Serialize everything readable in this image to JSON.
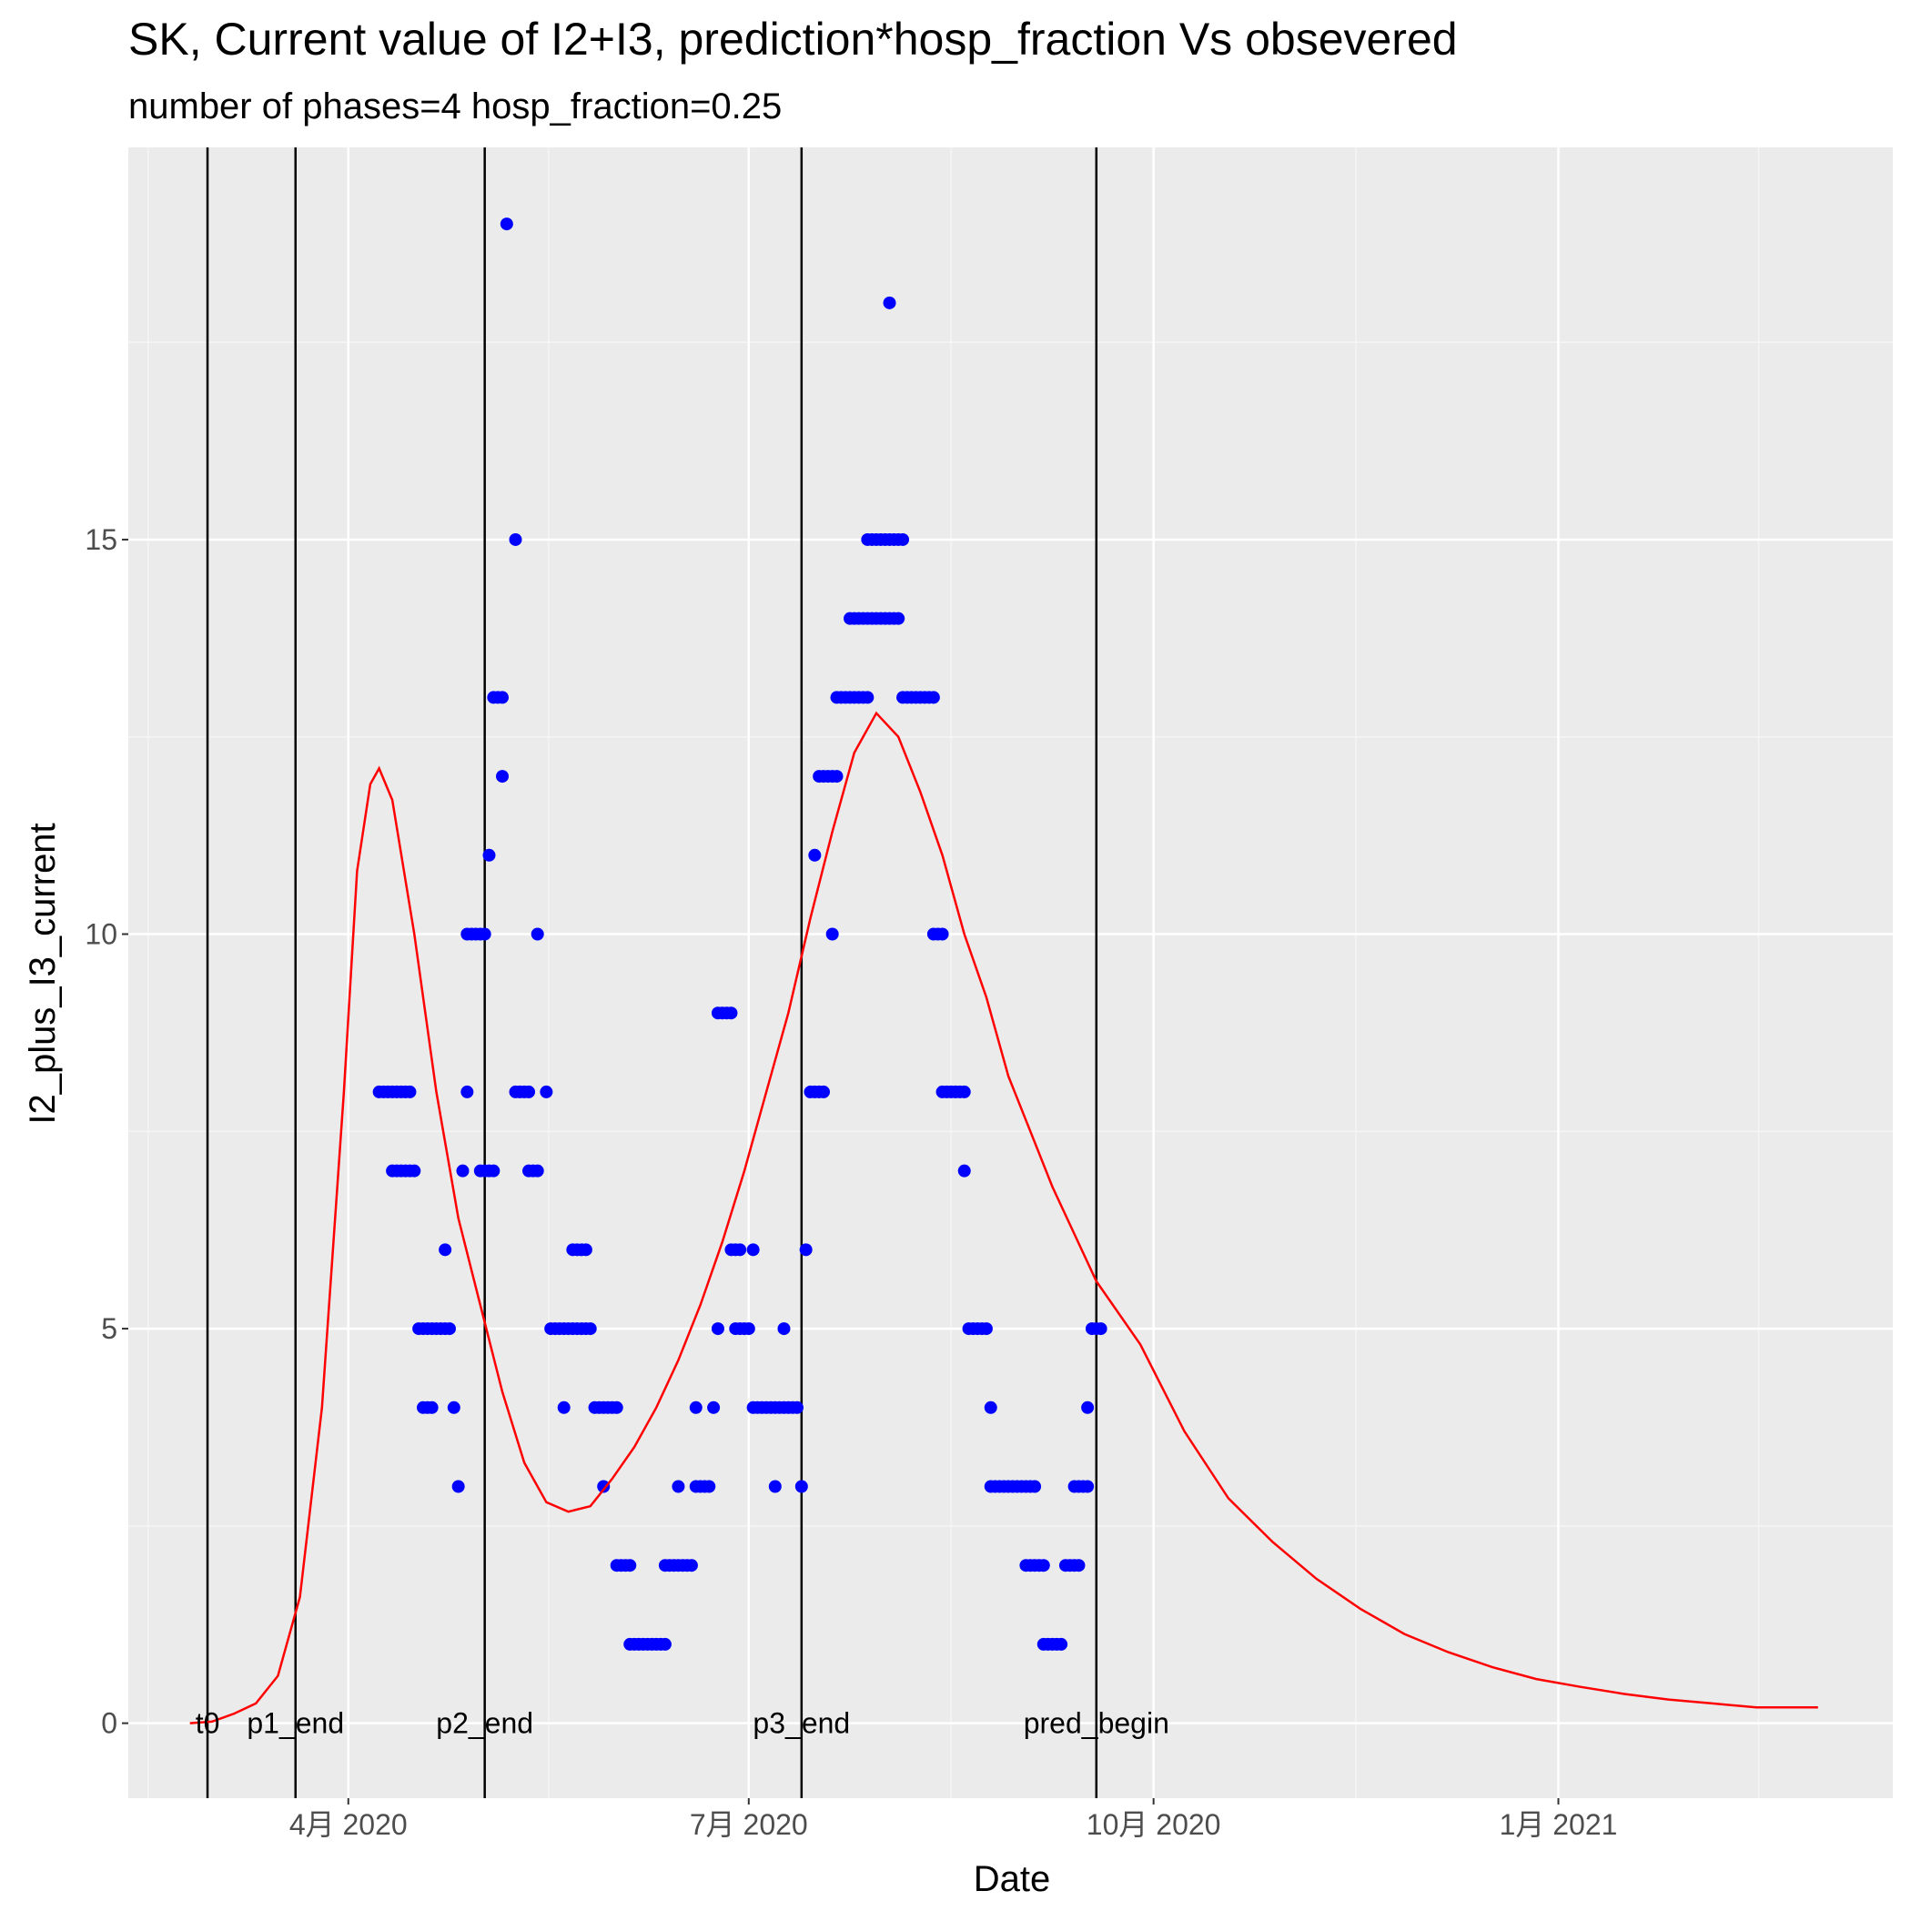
{
  "chart_data": {
    "type": "scatter",
    "title": "SK, Current value of I2+I3, prediction*hosp_fraction Vs obsevered",
    "subtitle": "number of phases=4   hosp_fraction=0.25",
    "x_label": "Date",
    "y_label": "I2_plus_I3_current",
    "xlim": [
      "2020-02-11",
      "2021-03-18"
    ],
    "ylim": [
      -0.95,
      19.97
    ],
    "xticks": [
      {
        "value": "2020-04-01",
        "label": "4月 2020"
      },
      {
        "value": "2020-07-01",
        "label": "7月 2020"
      },
      {
        "value": "2020-10-01",
        "label": "10月 2020"
      },
      {
        "value": "2021-01-01",
        "label": "1月 2021"
      }
    ],
    "yticks": [
      0,
      5,
      10,
      15
    ],
    "grid": true,
    "vlines": [
      {
        "x": "2020-02-29",
        "label": "t0"
      },
      {
        "x": "2020-03-20",
        "label": "p1_end"
      },
      {
        "x": "2020-05-02",
        "label": "p2_end"
      },
      {
        "x": "2020-07-13",
        "label": "p3_end"
      },
      {
        "x": "2020-09-18",
        "label": "pred_begin"
      }
    ],
    "series": [
      {
        "type": "scatter",
        "color": "#0000ff",
        "x": [
          "2020-04-08",
          "2020-04-09",
          "2020-04-10",
          "2020-04-11",
          "2020-04-12",
          "2020-04-13",
          "2020-04-14",
          "2020-04-15",
          "2020-04-11",
          "2020-04-12",
          "2020-04-13",
          "2020-04-14",
          "2020-04-15",
          "2020-04-16",
          "2020-04-17",
          "2020-04-18",
          "2020-04-19",
          "2020-04-20",
          "2020-04-21",
          "2020-04-22",
          "2020-04-23",
          "2020-04-24",
          "2020-04-18",
          "2020-04-19",
          "2020-04-20",
          "2020-04-25",
          "2020-04-23",
          "2020-04-26",
          "2020-04-27",
          "2020-04-28",
          "2020-04-28",
          "2020-04-29",
          "2020-04-30",
          "2020-05-01",
          "2020-05-02",
          "2020-05-01",
          "2020-05-02",
          "2020-05-03",
          "2020-05-04",
          "2020-05-03",
          "2020-05-04",
          "2020-05-05",
          "2020-05-06",
          "2020-05-06",
          "2020-05-07",
          "2020-05-09",
          "2020-05-09",
          "2020-05-10",
          "2020-05-11",
          "2020-05-12",
          "2020-05-12",
          "2020-05-13",
          "2020-05-14",
          "2020-05-14",
          "2020-05-16",
          "2020-05-17",
          "2020-05-18",
          "2020-05-19",
          "2020-05-20",
          "2020-05-21",
          "2020-05-22",
          "2020-05-23",
          "2020-05-24",
          "2020-05-25",
          "2020-05-26",
          "2020-05-20",
          "2020-05-22",
          "2020-05-23",
          "2020-05-24",
          "2020-05-25",
          "2020-05-27",
          "2020-05-28",
          "2020-05-29",
          "2020-05-30",
          "2020-05-31",
          "2020-06-01",
          "2020-05-29",
          "2020-06-01",
          "2020-06-02",
          "2020-06-03",
          "2020-06-04",
          "2020-06-04",
          "2020-06-05",
          "2020-06-06",
          "2020-06-07",
          "2020-06-08",
          "2020-06-09",
          "2020-06-10",
          "2020-06-11",
          "2020-06-12",
          "2020-06-12",
          "2020-06-13",
          "2020-06-14",
          "2020-06-15",
          "2020-06-16",
          "2020-06-17",
          "2020-06-18",
          "2020-06-15",
          "2020-06-19",
          "2020-06-20",
          "2020-06-21",
          "2020-06-22",
          "2020-06-19",
          "2020-06-23",
          "2020-06-24",
          "2020-06-24",
          "2020-06-25",
          "2020-06-26",
          "2020-06-27",
          "2020-06-27",
          "2020-06-28",
          "2020-06-29",
          "2020-07-02",
          "2020-06-28",
          "2020-06-29",
          "2020-06-30",
          "2020-07-01",
          "2020-07-02",
          "2020-07-03",
          "2020-07-04",
          "2020-07-05",
          "2020-07-06",
          "2020-07-07",
          "2020-07-08",
          "2020-07-09",
          "2020-07-10",
          "2020-07-11",
          "2020-07-12",
          "2020-07-07",
          "2020-07-13",
          "2020-07-09",
          "2020-07-14",
          "2020-07-15",
          "2020-07-16",
          "2020-07-17",
          "2020-07-18",
          "2020-07-16",
          "2020-07-17",
          "2020-07-18",
          "2020-07-19",
          "2020-07-20",
          "2020-07-21",
          "2020-07-20",
          "2020-07-21",
          "2020-07-22",
          "2020-07-23",
          "2020-07-24",
          "2020-07-25",
          "2020-07-26",
          "2020-07-27",
          "2020-07-28",
          "2020-07-24",
          "2020-07-25",
          "2020-07-26",
          "2020-07-27",
          "2020-07-28",
          "2020-07-29",
          "2020-07-30",
          "2020-07-31",
          "2020-08-01",
          "2020-08-02",
          "2020-08-03",
          "2020-08-04",
          "2020-07-28",
          "2020-07-29",
          "2020-07-30",
          "2020-07-31",
          "2020-08-01",
          "2020-08-02",
          "2020-08-03",
          "2020-08-04",
          "2020-08-05",
          "2020-08-02",
          "2020-08-05",
          "2020-08-06",
          "2020-08-07",
          "2020-08-08",
          "2020-08-09",
          "2020-08-10",
          "2020-08-11",
          "2020-08-12",
          "2020-08-12",
          "2020-08-13",
          "2020-08-14",
          "2020-08-14",
          "2020-08-15",
          "2020-08-16",
          "2020-08-17",
          "2020-08-18",
          "2020-08-19",
          "2020-08-19",
          "2020-08-20",
          "2020-08-21",
          "2020-08-22",
          "2020-08-23",
          "2020-08-24",
          "2020-08-25",
          "2020-08-25",
          "2020-08-26",
          "2020-08-27",
          "2020-08-28",
          "2020-08-29",
          "2020-08-30",
          "2020-08-31",
          "2020-09-01",
          "2020-09-02",
          "2020-09-03",
          "2020-09-04",
          "2020-09-02",
          "2020-09-03",
          "2020-09-04",
          "2020-09-05",
          "2020-09-06",
          "2020-09-06",
          "2020-09-07",
          "2020-09-08",
          "2020-09-09",
          "2020-09-10",
          "2020-09-11",
          "2020-09-12",
          "2020-09-13",
          "2020-09-14",
          "2020-09-13",
          "2020-09-14",
          "2020-09-15",
          "2020-09-16",
          "2020-09-16",
          "2020-09-17",
          "2020-09-18",
          "2020-09-19"
        ],
        "values": [
          8,
          8,
          8,
          8,
          8,
          8,
          8,
          8,
          7,
          7,
          7,
          7,
          7,
          7,
          5,
          5,
          5,
          5,
          5,
          5,
          5,
          5,
          4,
          4,
          4,
          4,
          6,
          3,
          7,
          8,
          10,
          10,
          10,
          10,
          10,
          7,
          7,
          7,
          7,
          11,
          13,
          13,
          13,
          12,
          19,
          15,
          8,
          8,
          8,
          8,
          7,
          7,
          7,
          10,
          8,
          5,
          5,
          5,
          5,
          5,
          5,
          5,
          5,
          5,
          5,
          4,
          6,
          6,
          6,
          6,
          4,
          4,
          4,
          4,
          4,
          4,
          3,
          2,
          2,
          2,
          2,
          1,
          1,
          1,
          1,
          1,
          1,
          1,
          1,
          1,
          2,
          2,
          2,
          2,
          2,
          2,
          2,
          3,
          3,
          3,
          3,
          3,
          4,
          4,
          5,
          9,
          9,
          9,
          9,
          6,
          6,
          6,
          6,
          5,
          5,
          5,
          5,
          4,
          4,
          4,
          4,
          4,
          4,
          4,
          4,
          4,
          4,
          4,
          3,
          3,
          5,
          6,
          8,
          8,
          8,
          8,
          11,
          12,
          12,
          12,
          12,
          12,
          10,
          13,
          13,
          13,
          13,
          13,
          13,
          13,
          13,
          14,
          14,
          14,
          14,
          14,
          14,
          14,
          14,
          14,
          14,
          14,
          14,
          15,
          15,
          15,
          15,
          15,
          15,
          15,
          15,
          15,
          18,
          13,
          13,
          13,
          13,
          13,
          13,
          13,
          13,
          10,
          10,
          10,
          8,
          8,
          8,
          8,
          8,
          8,
          7,
          5,
          5,
          5,
          5,
          5,
          4,
          3,
          3,
          3,
          3,
          3,
          3,
          3,
          3,
          3,
          3,
          3,
          2,
          2,
          2,
          2,
          2,
          1,
          1,
          1,
          1,
          1,
          2,
          2,
          2,
          2,
          3,
          3,
          3,
          3,
          4,
          5,
          5,
          5
        ]
      },
      {
        "type": "line",
        "color": "#ff0000",
        "x": [
          "2020-02-25",
          "2020-03-01",
          "2020-03-06",
          "2020-03-11",
          "2020-03-16",
          "2020-03-21",
          "2020-03-26",
          "2020-03-31",
          "2020-04-03",
          "2020-04-06",
          "2020-04-08",
          "2020-04-11",
          "2020-04-16",
          "2020-04-21",
          "2020-04-26",
          "2020-05-01",
          "2020-05-06",
          "2020-05-11",
          "2020-05-16",
          "2020-05-21",
          "2020-05-26",
          "2020-05-31",
          "2020-06-05",
          "2020-06-10",
          "2020-06-15",
          "2020-06-20",
          "2020-06-25",
          "2020-06-30",
          "2020-07-05",
          "2020-07-10",
          "2020-07-15",
          "2020-07-20",
          "2020-07-25",
          "2020-07-30",
          "2020-08-04",
          "2020-08-09",
          "2020-08-14",
          "2020-08-19",
          "2020-08-24",
          "2020-08-29",
          "2020-09-03",
          "2020-09-08",
          "2020-09-13",
          "2020-09-18",
          "2020-09-28",
          "2020-10-08",
          "2020-10-18",
          "2020-10-28",
          "2020-11-07",
          "2020-11-17",
          "2020-11-27",
          "2020-12-07",
          "2020-12-17",
          "2020-12-27",
          "2021-01-06",
          "2021-01-16",
          "2021-01-26",
          "2021-02-05",
          "2021-02-15",
          "2021-03-01"
        ],
        "values": [
          0,
          0.02,
          0.12,
          0.25,
          0.6,
          1.6,
          4.0,
          8.0,
          10.8,
          11.9,
          12.1,
          11.7,
          10.0,
          8.0,
          6.4,
          5.3,
          4.2,
          3.3,
          2.8,
          2.68,
          2.75,
          3.1,
          3.5,
          4.0,
          4.6,
          5.3,
          6.1,
          7.0,
          8.0,
          9.0,
          10.2,
          11.3,
          12.3,
          12.8,
          12.5,
          11.8,
          11.0,
          10.0,
          9.2,
          8.2,
          7.5,
          6.8,
          6.2,
          5.6,
          4.8,
          3.7,
          2.85,
          2.3,
          1.83,
          1.45,
          1.13,
          0.9,
          0.71,
          0.56,
          0.46,
          0.37,
          0.3,
          0.25,
          0.2,
          0.2
        ]
      }
    ]
  }
}
